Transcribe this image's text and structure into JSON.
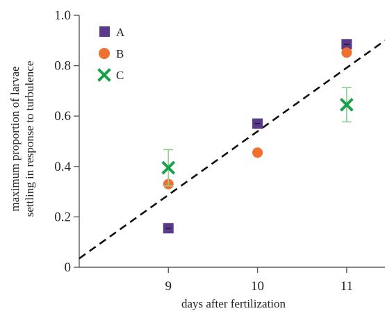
{
  "chart_data": {
    "type": "scatter",
    "title": "",
    "xlabel": "days after fertilization",
    "ylabel_lines": [
      "maximum proportion of larvae",
      "settling in response to turbulence"
    ],
    "xlim": [
      8.0,
      11.43
    ],
    "ylim": [
      0,
      1.0
    ],
    "xticks": [
      9,
      10,
      11
    ],
    "xtick_labels": [
      "9",
      "10",
      "11"
    ],
    "yticks": [
      0,
      0.2,
      0.4,
      0.6,
      0.8,
      1.0
    ],
    "ytick_labels": [
      "0",
      "0.2",
      "0.4",
      "0.6",
      "0.8",
      "1.0"
    ],
    "grid": false,
    "legend_position": "top-left",
    "series": [
      {
        "name": "A",
        "marker": "square",
        "color": "#5b3a8c",
        "x": [
          9,
          10,
          11
        ],
        "y": [
          0.155,
          0.57,
          0.885
        ],
        "err": [
          0.008,
          0.008,
          0.008
        ]
      },
      {
        "name": "B",
        "marker": "circle",
        "color": "#f07030",
        "x": [
          9,
          10,
          11
        ],
        "y": [
          0.33,
          0.455,
          0.852
        ],
        "err": [
          0,
          0,
          0
        ]
      },
      {
        "name": "C",
        "marker": "x",
        "color": "#1aa04a",
        "x": [
          9,
          11
        ],
        "y": [
          0.395,
          0.645
        ],
        "err": [
          0.072,
          0.068
        ]
      }
    ],
    "fit_line": {
      "style": "dashed",
      "color": "#111111",
      "x": [
        8.0,
        11.43
      ],
      "y": [
        0.035,
        0.9
      ]
    }
  }
}
